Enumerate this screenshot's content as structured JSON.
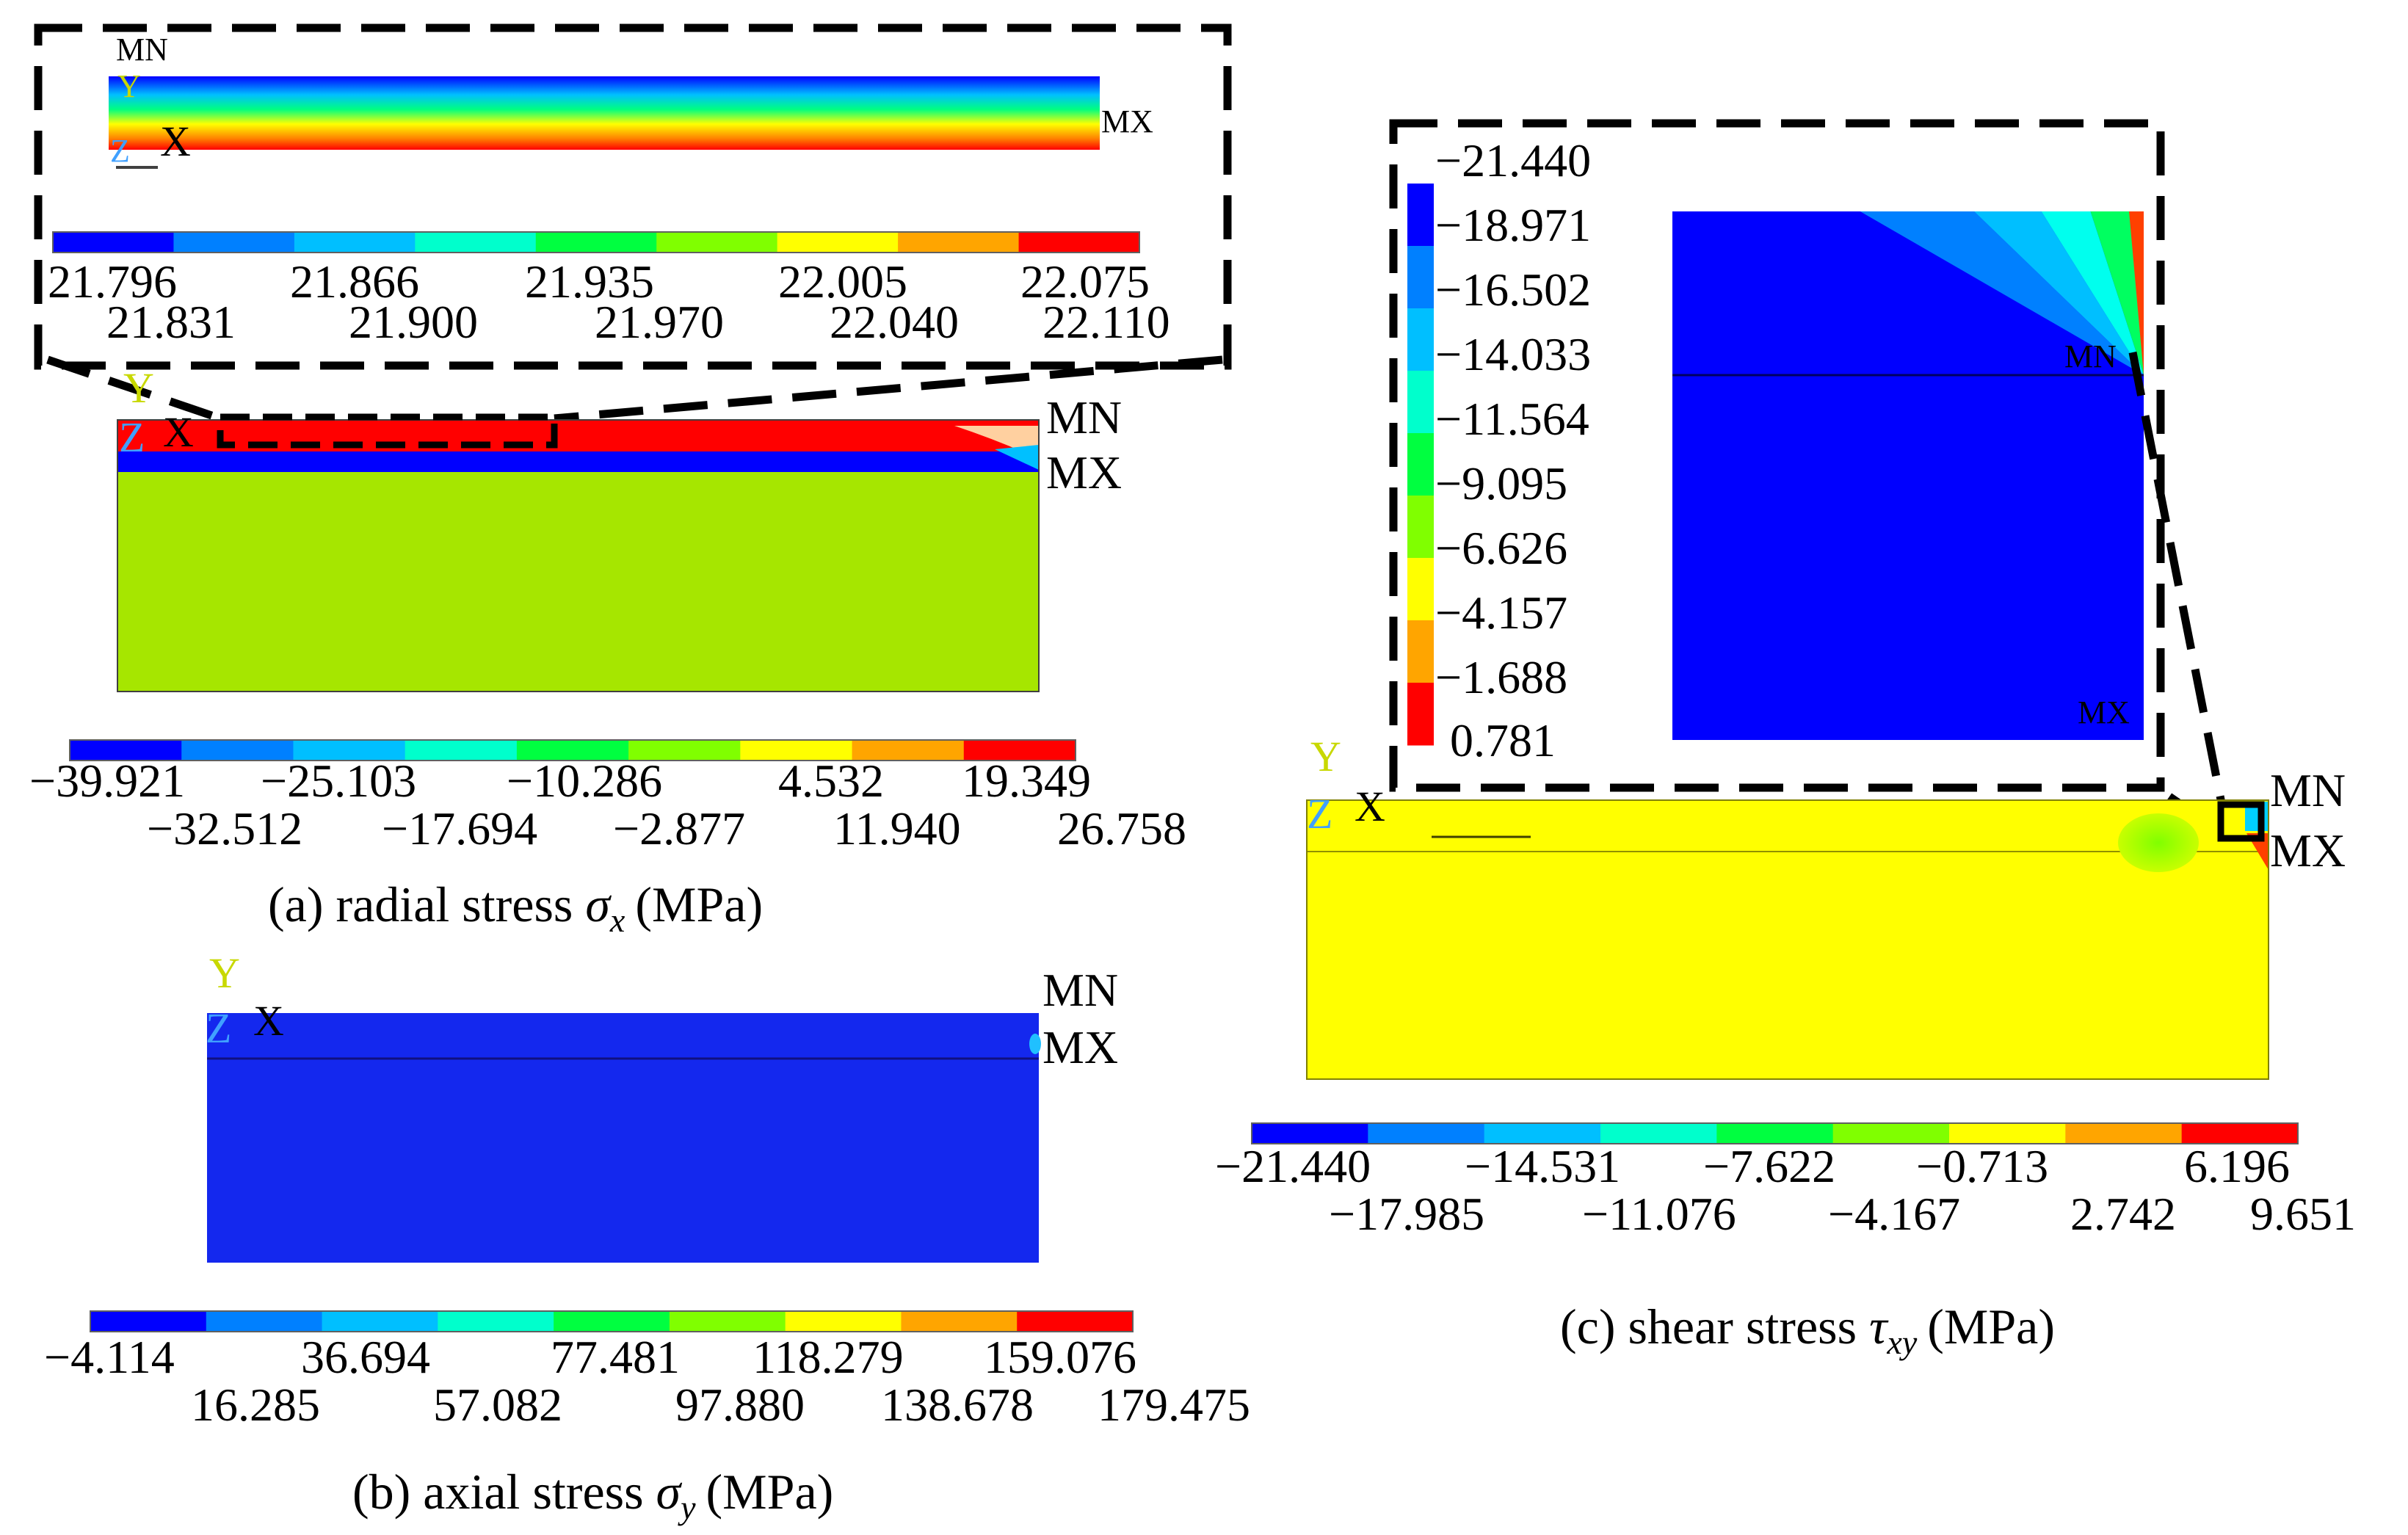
{
  "palette": [
    "#0000ff",
    "#0080ff",
    "#00bfff",
    "#00ffcc",
    "#00ff40",
    "#80ff00",
    "#ffff00",
    "#ffa500",
    "#ff0000"
  ],
  "markers": {
    "min": "MN",
    "max": "MX"
  },
  "axes": {
    "y": "Y",
    "z": "Z",
    "x": "X"
  },
  "panel_a": {
    "caption": "(a) radial stress σx (MPa)",
    "caption_prefix": "(a) radial stress ",
    "symbol": "σ",
    "subscript": "x",
    "unit": "(MPa)",
    "legend_upper": [
      "−39.921",
      "−25.103",
      "−10.286",
      "4.532",
      "19.349"
    ],
    "legend_lower": [
      "−32.512",
      "−17.694",
      "−2.877",
      "11.940",
      "26.758"
    ],
    "zoom_legend_upper": [
      "21.796",
      "21.866",
      "21.935",
      "22.005",
      "22.075"
    ],
    "zoom_legend_lower": [
      "21.831",
      "21.900",
      "21.970",
      "22.040",
      "22.110"
    ]
  },
  "panel_b": {
    "caption": "(b) axial stress σy (MPa)",
    "caption_prefix": "(b) axial stress ",
    "symbol": "σ",
    "subscript": "y",
    "unit": "(MPa)",
    "legend_upper": [
      "−4.114",
      "36.694",
      "77.481",
      "118.279",
      "159.076"
    ],
    "legend_lower": [
      "16.285",
      "57.082",
      "97.880",
      "138.678",
      "179.475"
    ]
  },
  "panel_c": {
    "caption": "(c) shear stress τxy (MPa)",
    "caption_prefix": "(c) shear stress ",
    "symbol": "τ",
    "subscript": "xy",
    "unit": "(MPa)",
    "legend_upper": [
      "−21.440",
      "−14.531",
      "−7.622",
      "−0.713",
      "6.196"
    ],
    "legend_lower": [
      "−17.985",
      "−11.076",
      "−4.167",
      "2.742",
      "9.651"
    ],
    "zoom_legend": [
      "−21.440",
      "−18.971",
      "−16.502",
      "−14.033",
      "−11.564",
      "−9.095",
      "−6.626",
      "−4.157",
      "−1.688",
      "0.781"
    ]
  }
}
